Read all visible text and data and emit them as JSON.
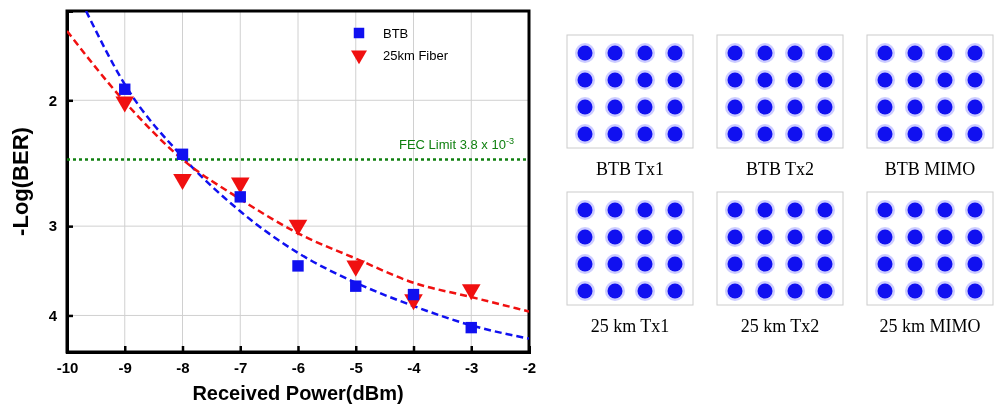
{
  "chart_data": [
    {
      "type": "scatter",
      "xlabel": "Received Power(dBm)",
      "ylabel": "-Log(BER)",
      "log": "y",
      "xlim": [
        -10,
        -2
      ],
      "xticks": [
        -10,
        -9,
        -8,
        -7,
        -6,
        -5,
        -4,
        -3,
        -2
      ],
      "ylim": [
        4.5,
        1.5
      ],
      "yticks": [
        2,
        3,
        4
      ],
      "grid": true,
      "legend": "top right",
      "series": [
        {
          "name": "BTB",
          "type": "scatter",
          "marker": "square",
          "color": "#1010f0",
          "x": [
            -9,
            -8,
            -7,
            -6,
            -5,
            -4,
            -3
          ],
          "values": [
            1.93,
            2.38,
            2.73,
            3.41,
            3.64,
            3.74,
            4.16
          ]
        },
        {
          "name": "25km Fiber",
          "type": "scatter",
          "marker": "triangle",
          "color": "#f01010",
          "x": [
            -9,
            -8,
            -7,
            -6,
            -5,
            -4,
            -3
          ],
          "values": [
            2.01,
            2.58,
            2.61,
            2.99,
            3.41,
            3.8,
            3.68
          ]
        },
        {
          "type": "line",
          "line_style": "dashed",
          "marker": "none",
          "color": "#1010f0",
          "x": [
            -9.67,
            -9,
            -8,
            -7,
            -6,
            -5,
            -4,
            -3,
            -2
          ],
          "values": [
            1.5,
            1.9,
            2.4,
            2.86,
            3.27,
            3.6,
            3.88,
            4.13,
            4.31
          ]
        },
        {
          "type": "line",
          "line_style": "dashed",
          "marker": "none",
          "color": "#f01010",
          "x": [
            -10,
            -9,
            -8,
            -7,
            -6,
            -5,
            -4,
            -3,
            -2
          ],
          "values": [
            1.6,
            2.01,
            2.42,
            2.75,
            3.07,
            3.33,
            3.6,
            3.77,
            3.95
          ]
        }
      ],
      "ref_lines": [
        {
          "axis": "y",
          "value": 2.42,
          "label": "FEC Limit  3.8 x 10$^{-3}$",
          "color": "#108010",
          "line_style": "dotted"
        }
      ]
    },
    {
      "type": "other",
      "annotations": [
        "BTB Tx1",
        "BTB Tx2",
        "BTB MIMO",
        "25 km Tx1",
        "25 km Tx2",
        "25 km MIMO"
      ]
    }
  ]
}
